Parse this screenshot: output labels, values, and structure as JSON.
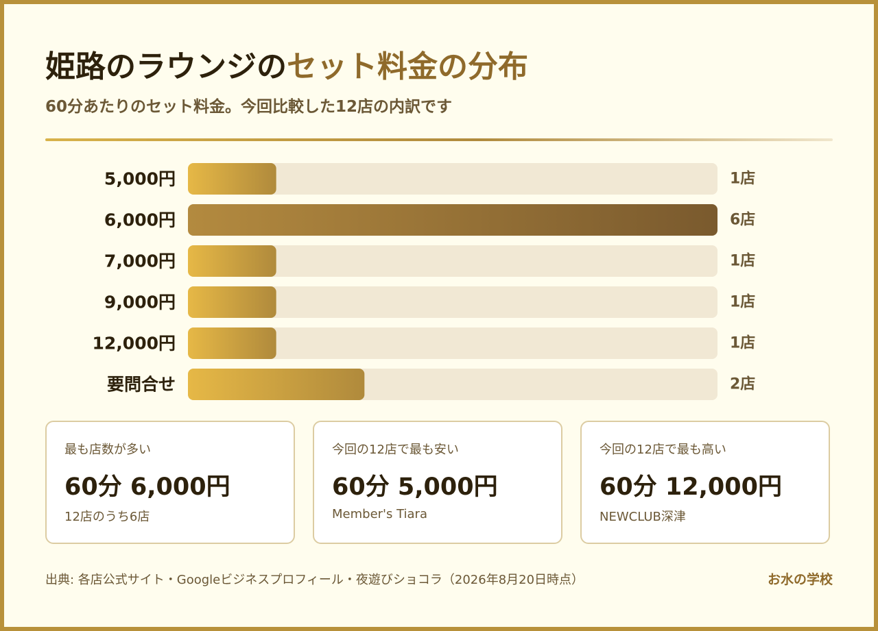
{
  "header": {
    "title_main": "姫路のラウンジの",
    "title_accent": "セット料金の分布",
    "subtitle": "60分あたりのセット料金。今回比較した12店の内訳です"
  },
  "chart_data": {
    "type": "bar",
    "orientation": "horizontal",
    "categories": [
      "5,000円",
      "6,000円",
      "7,000円",
      "9,000円",
      "12,000円",
      "要問合せ"
    ],
    "values": [
      1,
      6,
      1,
      1,
      1,
      2
    ],
    "value_labels": [
      "1店",
      "6店",
      "1店",
      "1店",
      "1店",
      "2店"
    ],
    "xlim": [
      0,
      6
    ],
    "highlight_index": 1,
    "colors": {
      "bar_start": "#e6b846",
      "bar_end": "#b08a3c",
      "highlight_start": "#b38a3f",
      "highlight_end": "#7a5a2e",
      "track": "#f1e8d4"
    }
  },
  "cards": [
    {
      "label": "最も店数が多い",
      "value": "60分 6,000円",
      "note": "12店のうち6店"
    },
    {
      "label": "今回の12店で最も安い",
      "value": "60分 5,000円",
      "note": "Member's Tiara"
    },
    {
      "label": "今回の12店で最も高い",
      "value": "60分 12,000円",
      "note": "NEWCLUB深津"
    }
  ],
  "footer": {
    "source": "出典: 各店公式サイト・Googleビジネスプロフィール・夜遊びショコラ（2026年8月20日時点）",
    "brand": "お水の学校"
  }
}
